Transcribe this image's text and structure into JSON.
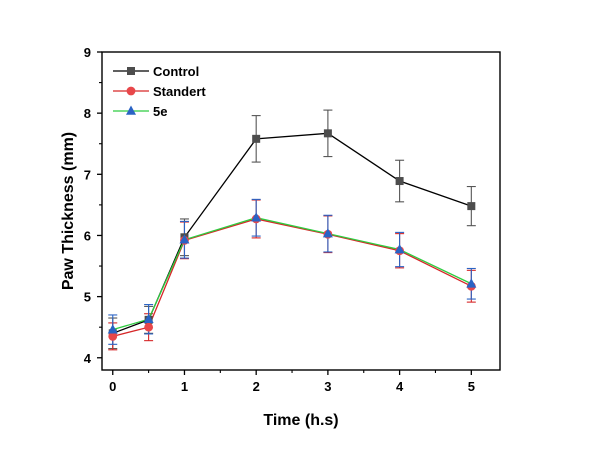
{
  "chart_data": {
    "type": "line",
    "xlabel": "Time (h.s)",
    "ylabel": "Paw Thickness (mm)",
    "xlim": [
      -0.15,
      5.4
    ],
    "ylim": [
      3.8,
      9
    ],
    "xticks": [
      0,
      1,
      2,
      3,
      4,
      5
    ],
    "yticks": [
      4,
      5,
      6,
      7,
      8,
      9
    ],
    "x_tick_labels": [
      "0",
      "1",
      "2",
      "3",
      "4",
      "5"
    ],
    "y_tick_labels": [
      "4",
      "5",
      "6",
      "7",
      "8",
      "9"
    ],
    "grid": false,
    "legend_position": "top-left",
    "series": [
      {
        "name": "Control",
        "marker": "square",
        "line_color": "#000000",
        "marker_color": "#4d4d4d",
        "error_color": "#555555",
        "points": [
          {
            "x": 0,
            "y": 4.4,
            "err": 0.25
          },
          {
            "x": 0.5,
            "y": 4.62,
            "err": 0.22
          },
          {
            "x": 1,
            "y": 5.97,
            "err": 0.3
          },
          {
            "x": 2,
            "y": 7.58,
            "err": 0.38
          },
          {
            "x": 3,
            "y": 7.67,
            "err": 0.38
          },
          {
            "x": 4,
            "y": 6.89,
            "err": 0.34
          },
          {
            "x": 5,
            "y": 6.48,
            "err": 0.32
          }
        ]
      },
      {
        "name": "Standert",
        "marker": "circle",
        "line_color": "#d62728",
        "marker_color": "#e8474a",
        "error_color": "#d62728",
        "points": [
          {
            "x": 0,
            "y": 4.35,
            "err": 0.22
          },
          {
            "x": 0.5,
            "y": 4.5,
            "err": 0.22
          },
          {
            "x": 1,
            "y": 5.92,
            "err": 0.3
          },
          {
            "x": 2,
            "y": 6.27,
            "err": 0.31
          },
          {
            "x": 3,
            "y": 6.02,
            "err": 0.3
          },
          {
            "x": 4,
            "y": 5.75,
            "err": 0.28
          },
          {
            "x": 5,
            "y": 5.17,
            "err": 0.26
          }
        ]
      },
      {
        "name": "5e",
        "marker": "triangle",
        "line_color": "#2ecc40",
        "marker_color": "#2a63c4",
        "error_color": "#2a63c4",
        "points": [
          {
            "x": 0,
            "y": 4.46,
            "err": 0.24
          },
          {
            "x": 0.5,
            "y": 4.63,
            "err": 0.24
          },
          {
            "x": 1,
            "y": 5.93,
            "err": 0.3
          },
          {
            "x": 2,
            "y": 6.29,
            "err": 0.3
          },
          {
            "x": 3,
            "y": 6.03,
            "err": 0.3
          },
          {
            "x": 4,
            "y": 5.77,
            "err": 0.28
          },
          {
            "x": 5,
            "y": 5.21,
            "err": 0.25
          }
        ]
      }
    ]
  }
}
